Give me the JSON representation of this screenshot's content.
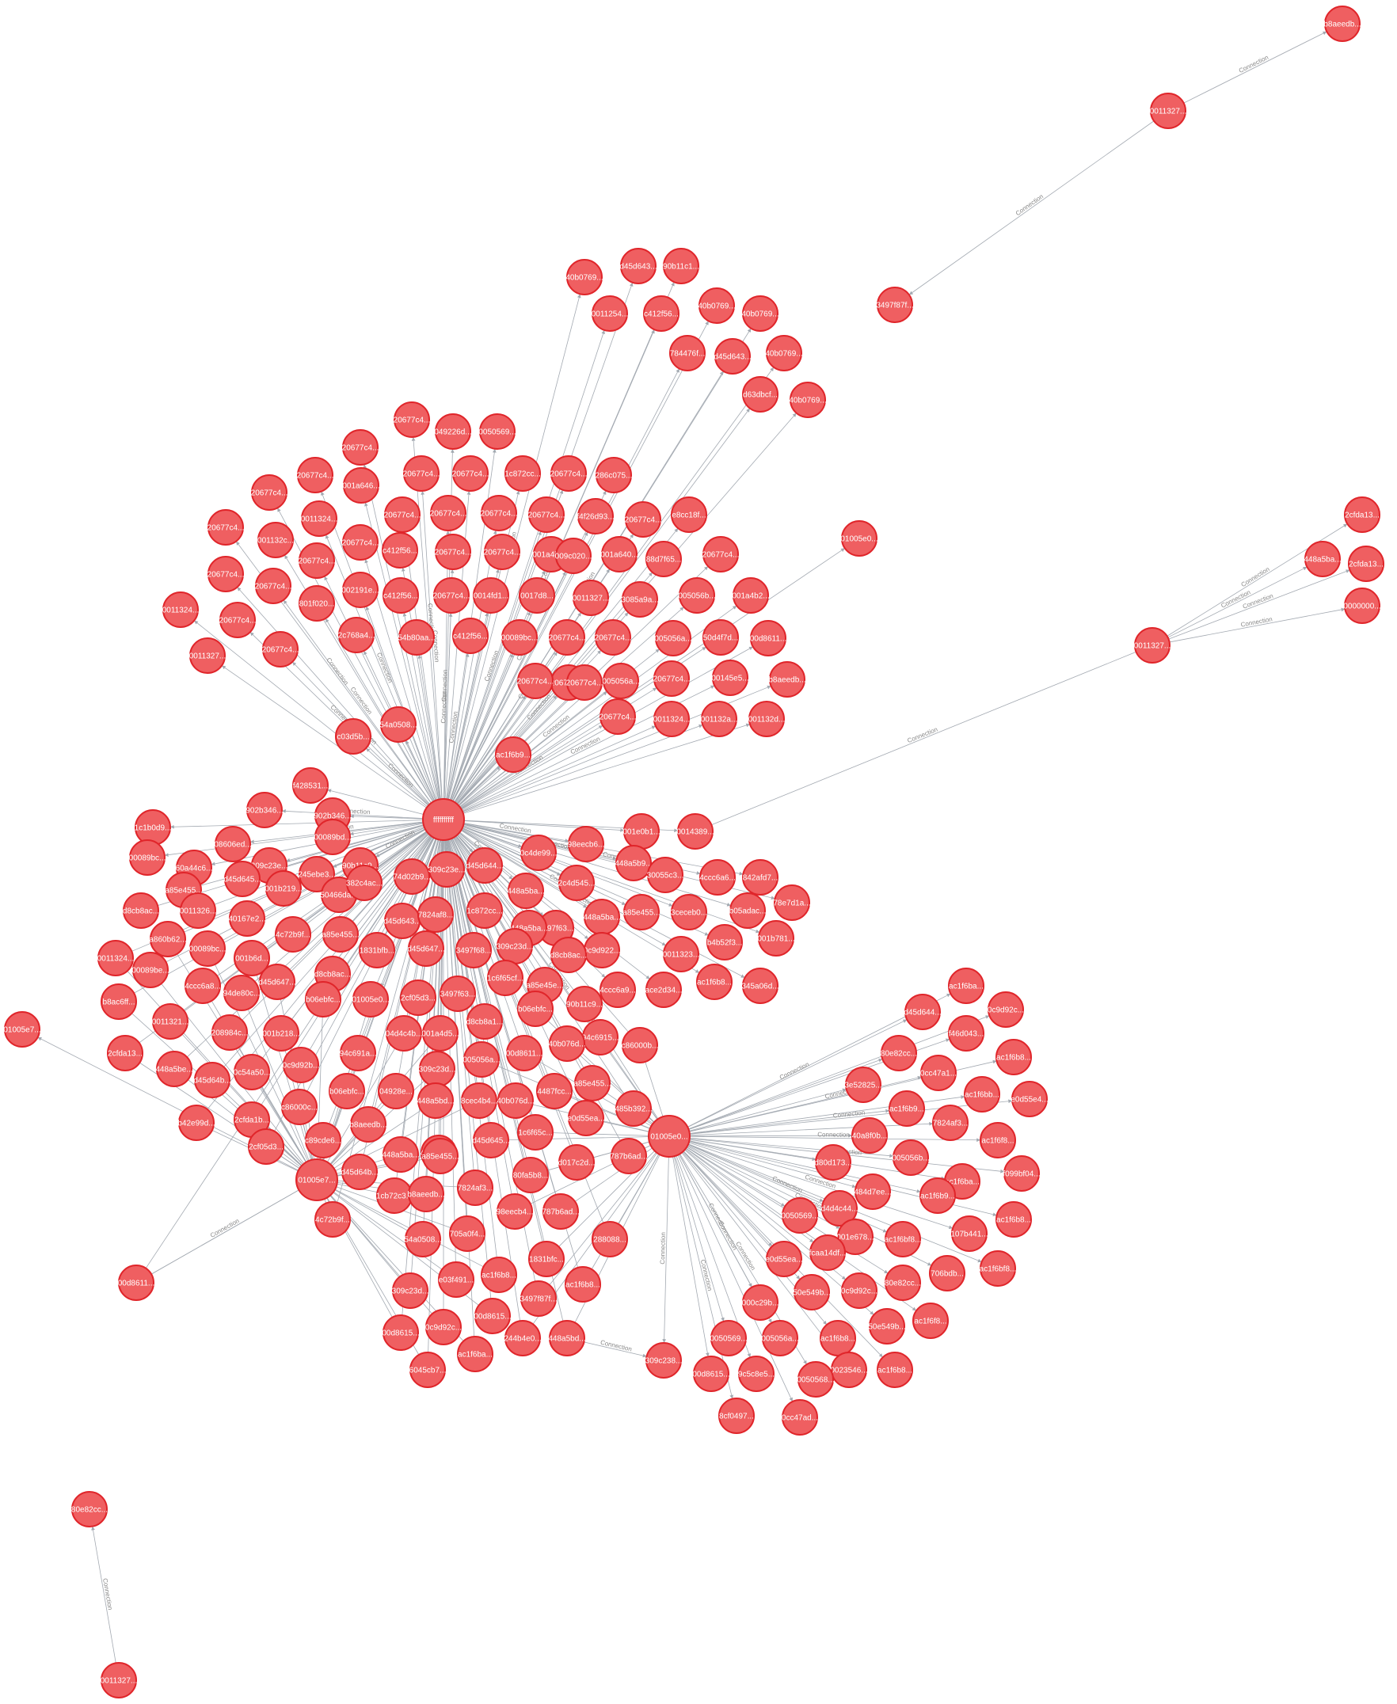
{
  "graph": {
    "colors": {
      "node_fill": "#ef5f61",
      "node_stroke": "#e0252a",
      "edge": "#a3a9b1",
      "edge_label": "#888888",
      "node_text": "#ffffff"
    },
    "edge_label": "Connection",
    "hubs": [
      "ffffffffff",
      "01005e0...",
      "01005e7..."
    ],
    "labels": [
      "b8aeedb...",
      "0011327...",
      "3497f87f...",
      "40b0769...",
      "d45d643...",
      "90b11c1...",
      "0011254...",
      "c412f56...",
      "40b0769...",
      "40b0769...",
      "784476f...",
      "d45d643...",
      "40b0769...",
      "d63dbcf...",
      "40b0769...",
      "20677c4...",
      "049226d...",
      "0050569...",
      "20677c4...",
      "20677c4...",
      "20677c4...",
      "1c872cc...",
      "20677c4...",
      "286c075...",
      "01005e0...",
      "2cfda13...",
      "448a5ba...",
      "2cfda13...",
      "0000000...",
      "0011327...",
      "ac1f6b9...",
      "54a0508...",
      "c03dd5b...",
      "f428531...",
      "902b346...",
      "902b346...",
      "00089bd...",
      "08606ed...",
      "1c1b0d9...",
      "00089bc...",
      "60a44c6...",
      "309c23e...",
      "90b11c9...",
      "01005e7...",
      "00d8611...",
      "80e82cc...",
      "0011327...",
      "01005e0...",
      "309c238...",
      "8cf0497...",
      "0cc47ad...",
      "00d8615...",
      "9c5c8e5...",
      "0050569...",
      "448a5bd...",
      "244b4e0...",
      "ac1f6ba...",
      "6045cb7...",
      "00d8615...",
      "0c9d92c...",
      "0050569...",
      "d45d644...",
      "ac1f6ba...",
      "0c9d92c...",
      "f46d043...",
      "ac1f6b8...",
      "0cc47a1...",
      "e0d55e4...",
      "7824af3...",
      "ac1f6f8...",
      "f099bf04...",
      "107b441...",
      "ac1f6b8...",
      "706bdb...",
      "ac1f6bf8..."
    ],
    "hub_labels_shown": true
  }
}
